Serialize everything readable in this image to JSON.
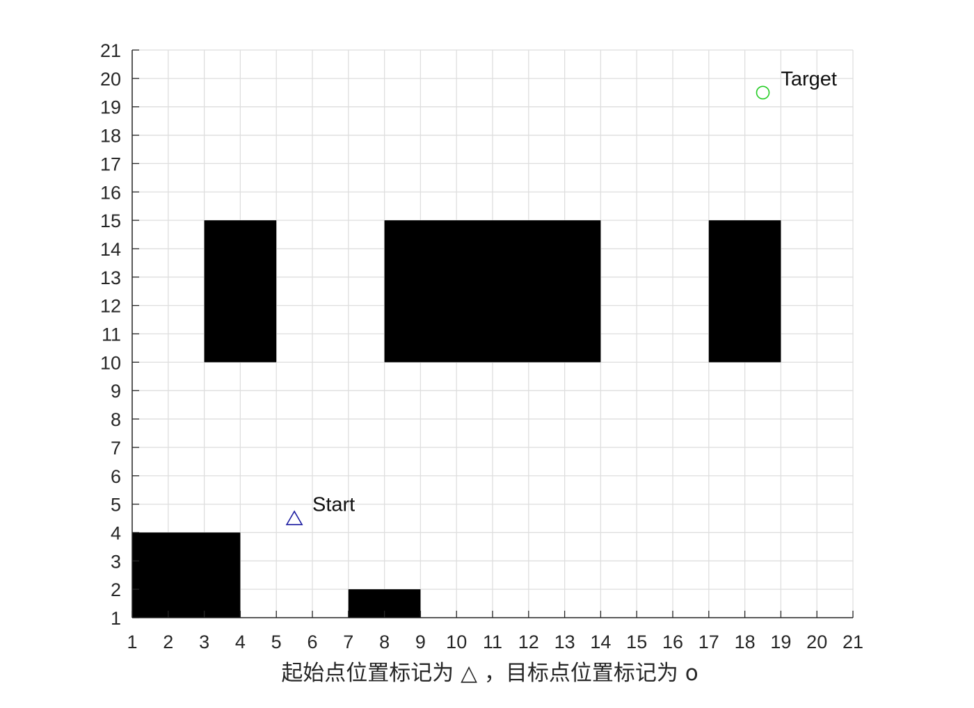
{
  "chart_data": {
    "type": "scatter",
    "title": "",
    "xlabel": "起始点位置标记为 △ ，目标点位置标记为 o",
    "ylabel": "",
    "xlim": [
      1,
      21
    ],
    "ylim": [
      1,
      21
    ],
    "grid": true,
    "xticks": [
      "1",
      "2",
      "3",
      "4",
      "5",
      "6",
      "7",
      "8",
      "9",
      "10",
      "11",
      "12",
      "13",
      "14",
      "15",
      "16",
      "17",
      "18",
      "19",
      "20",
      "21"
    ],
    "yticks": [
      "1",
      "2",
      "3",
      "4",
      "5",
      "6",
      "7",
      "8",
      "9",
      "10",
      "11",
      "12",
      "13",
      "14",
      "15",
      "16",
      "17",
      "18",
      "19",
      "20",
      "21"
    ],
    "obstacles": [
      {
        "x": [
          3,
          5
        ],
        "y": [
          10,
          15
        ]
      },
      {
        "x": [
          8,
          14
        ],
        "y": [
          10,
          15
        ]
      },
      {
        "x": [
          17,
          19
        ],
        "y": [
          10,
          15
        ]
      },
      {
        "x": [
          1,
          4
        ],
        "y": [
          1,
          4
        ]
      },
      {
        "x": [
          7,
          9
        ],
        "y": [
          1,
          2
        ]
      }
    ],
    "obstacle_color": "#000000",
    "points": [
      {
        "name": "start",
        "x": 5.5,
        "y": 4.5,
        "marker": "triangle",
        "color": "#1a1aa0",
        "label": "Start",
        "label_x": 6,
        "label_y": 5
      },
      {
        "name": "target",
        "x": 18.5,
        "y": 19.5,
        "marker": "circle",
        "color": "#22cc22",
        "label": "Target",
        "label_x": 19,
        "label_y": 20
      }
    ]
  }
}
